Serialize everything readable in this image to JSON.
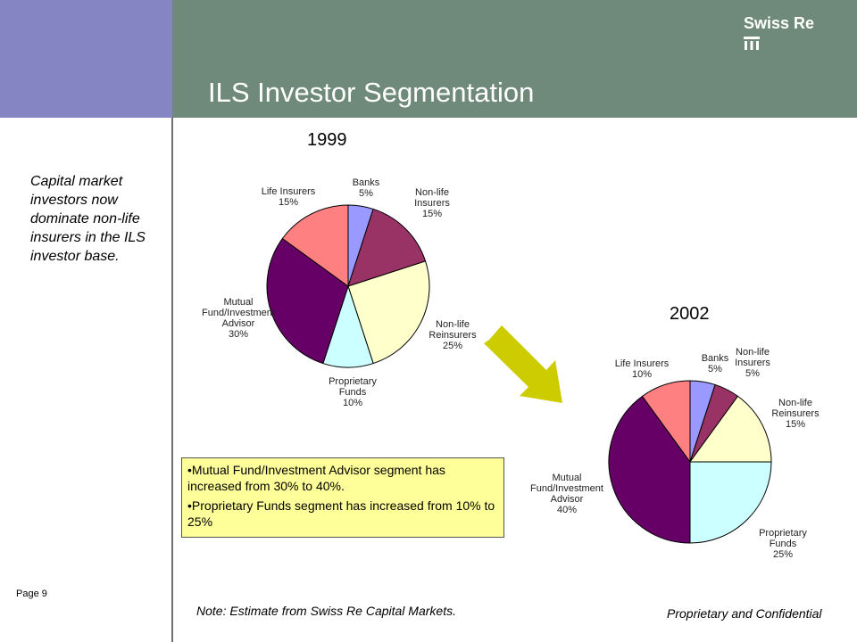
{
  "header": {
    "title": "ILS Investor Segmentation",
    "logo_text": "Swiss Re",
    "logo_icon": "swiss-re-mark-icon",
    "left_color": "#8585c4",
    "right_color": "#6f8a7a"
  },
  "sidebar": {
    "text": "Capital market investors now dominate non-life insurers in the ILS investor base."
  },
  "callout": {
    "bullet1": "•Mutual Fund/Investment Advisor segment has increased from 30% to 40%.",
    "bullet2": "•Proprietary Funds segment has increased from 10% to 25%",
    "background": "#ffff99"
  },
  "footer": {
    "page": "Page 9",
    "note": "Note:  Estimate from Swiss Re Capital Markets.",
    "confidential": "Proprietary and Confidential"
  },
  "chart_data": [
    {
      "type": "pie",
      "title": "1999",
      "slices": [
        {
          "label": [
            "Banks",
            "5%"
          ],
          "value": 5,
          "color": "#9999ff"
        },
        {
          "label": [
            "Non-life",
            "Insurers",
            "15%"
          ],
          "value": 15,
          "color": "#993366"
        },
        {
          "label": [
            "Non-life",
            "Reinsurers",
            "25%"
          ],
          "value": 25,
          "color": "#ffffcc"
        },
        {
          "label": [
            "Proprietary",
            "Funds",
            "10%"
          ],
          "value": 10,
          "color": "#ccffff"
        },
        {
          "label": [
            "Mutual",
            "Fund/Investment",
            "Advisor",
            "30%"
          ],
          "value": 30,
          "color": "#660066"
        },
        {
          "label": [
            "Life Insurers",
            "15%"
          ],
          "value": 15,
          "color": "#ff8080"
        }
      ]
    },
    {
      "type": "pie",
      "title": "2002",
      "slices": [
        {
          "label": [
            "Banks",
            "5%"
          ],
          "value": 5,
          "color": "#9999ff"
        },
        {
          "label": [
            "Non-life",
            "Insurers",
            "5%"
          ],
          "value": 5,
          "color": "#993366"
        },
        {
          "label": [
            "Non-life",
            "Reinsurers",
            "15%"
          ],
          "value": 15,
          "color": "#ffffcc"
        },
        {
          "label": [
            "Proprietary",
            "Funds",
            "25%"
          ],
          "value": 25,
          "color": "#ccffff"
        },
        {
          "label": [
            "Mutual",
            "Fund/Investment",
            "Advisor",
            "40%"
          ],
          "value": 40,
          "color": "#660066"
        },
        {
          "label": [
            "Life Insurers",
            "10%"
          ],
          "value": 10,
          "color": "#ff8080"
        }
      ]
    }
  ],
  "arrow_color": "#cccc00"
}
